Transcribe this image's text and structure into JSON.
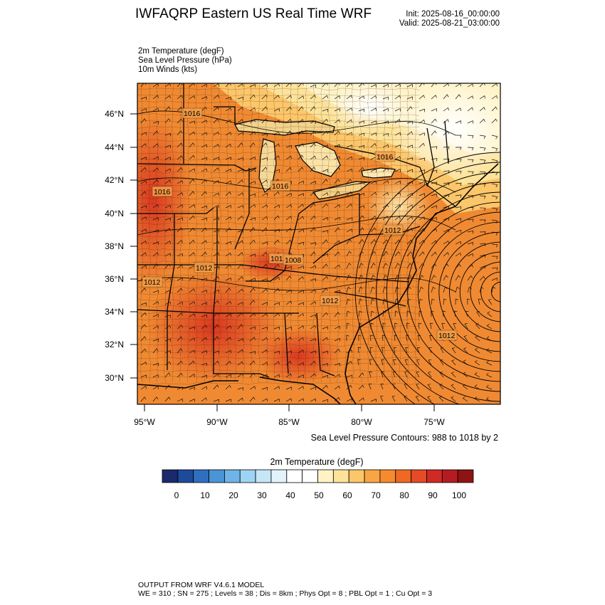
{
  "header": {
    "title": "IWFAQRP Eastern US Real Time WRF",
    "init": "Init: 2025-08-16_00:00:00",
    "valid": "Valid: 2025-08-21_03:00:00"
  },
  "fields": [
    "2m Temperature   (degF)",
    "Sea Level Pressure   (hPa)",
    "10m Winds   (kts)"
  ],
  "map": {
    "lat_labels": [
      "46°N",
      "44°N",
      "42°N",
      "40°N",
      "38°N",
      "36°N",
      "34°N",
      "32°N",
      "30°N"
    ],
    "lon_labels": [
      "95°W",
      "90°W",
      "85°W",
      "80°W",
      "75°W"
    ],
    "contour_labels": [
      "1016",
      "1016",
      "1016",
      "1016",
      "1012",
      "1012",
      "1012",
      "1012",
      "1012",
      "1012",
      "1008"
    ],
    "contour_note": "Sea Level Pressure Contours: 988 to 1018 by 2",
    "low_pressure_center": "offshore east of Cape Hatteras"
  },
  "colorbar": {
    "title": "2m Temperature  (degF)",
    "ticks": [
      "0",
      "10",
      "20",
      "30",
      "40",
      "50",
      "60",
      "70",
      "80",
      "90",
      "100"
    ],
    "colors": [
      "#1a2a6c",
      "#1e4a9a",
      "#2f6fc0",
      "#4a95d6",
      "#6fb4e6",
      "#9ed4f3",
      "#c6e6f8",
      "#e3f3fc",
      "#ffffff",
      "#ffffff",
      "#fff3c6",
      "#fde39a",
      "#fcc66a",
      "#f9a543",
      "#f58a2f",
      "#ee6a22",
      "#e44b26",
      "#cf2a24",
      "#b51c22",
      "#8e1414"
    ]
  },
  "footer": {
    "line1": "OUTPUT FROM WRF V4.6.1 MODEL",
    "line2": "WE = 310 ; SN = 275 ; Levels = 38 ; Dis = 8km ; Phys Opt = 8 ; PBL Opt = 1 ; Cu Opt = 3"
  }
}
